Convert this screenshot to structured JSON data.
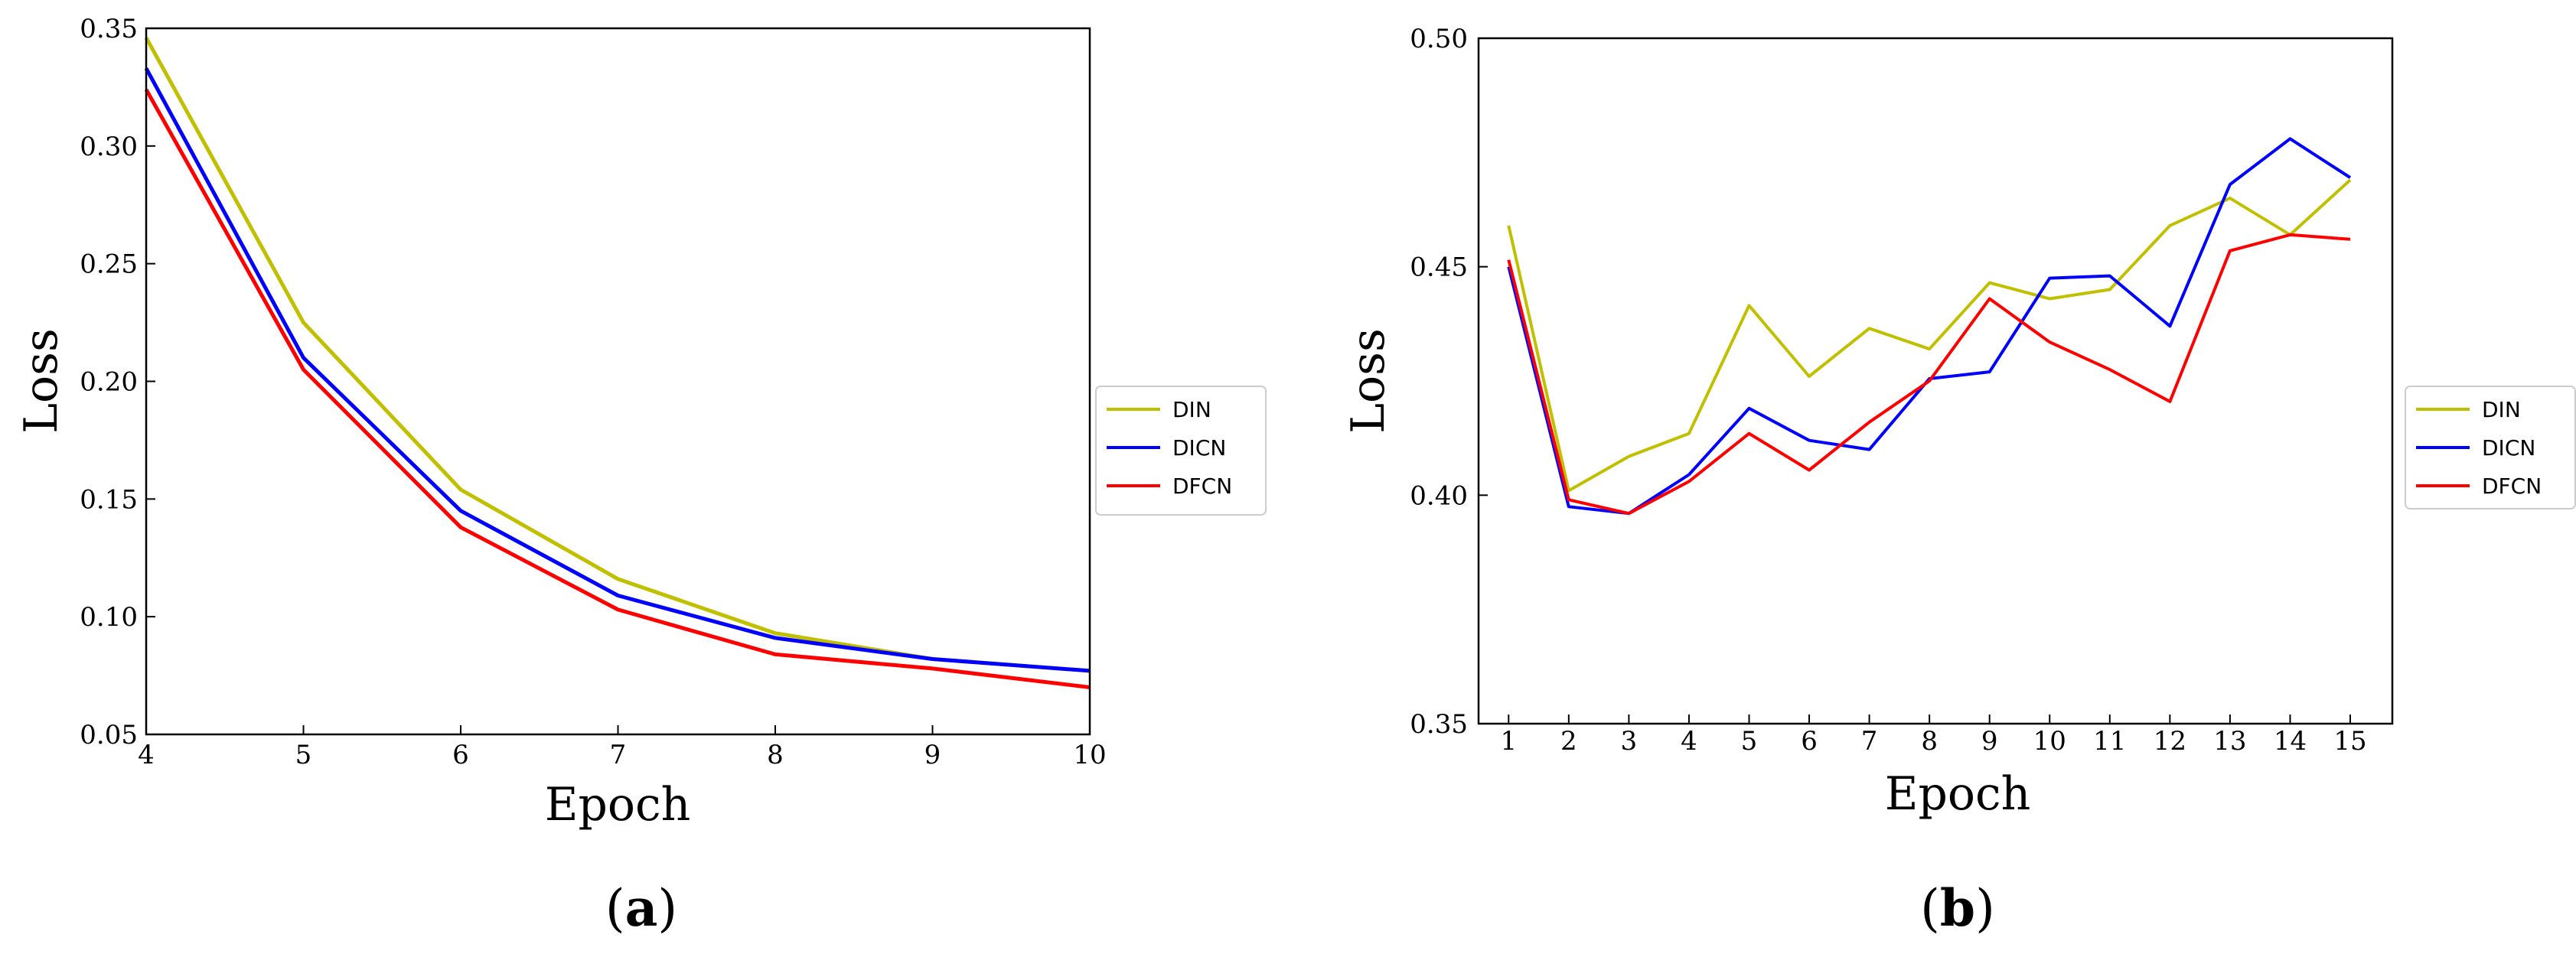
{
  "chart_data": [
    {
      "type": "line",
      "panel": "a",
      "xlabel": "Epoch",
      "ylabel": "Loss",
      "xlim": [
        4,
        10
      ],
      "ylim": [
        0.05,
        0.35
      ],
      "xticks": [
        "4",
        "5",
        "6",
        "7",
        "8",
        "9",
        "10"
      ],
      "yticks": [
        "0.05",
        "0.10",
        "0.15",
        "0.20",
        "0.25",
        "0.30",
        "0.35"
      ],
      "x": [
        4,
        5,
        6,
        7,
        8,
        9,
        10
      ],
      "series": [
        {
          "name": "DIN",
          "color": "#c0c000",
          "values": [
            0.346,
            0.225,
            0.154,
            0.116,
            0.093,
            0.082,
            0.077
          ]
        },
        {
          "name": "DICN",
          "color": "#0000ff",
          "values": [
            0.333,
            0.21,
            0.145,
            0.109,
            0.091,
            0.082,
            0.077
          ]
        },
        {
          "name": "DFCN",
          "color": "#ff0000",
          "values": [
            0.324,
            0.205,
            0.138,
            0.103,
            0.084,
            0.078,
            0.07
          ]
        }
      ],
      "legend_position": "right",
      "caption_open": "(",
      "caption": "a",
      "caption_close": ")"
    },
    {
      "type": "line",
      "panel": "b",
      "xlabel": "Epoch",
      "ylabel": "Loss",
      "xlim": [
        0.5,
        15.7
      ],
      "ylim": [
        0.35,
        0.5
      ],
      "xticks": [
        "1",
        "2",
        "3",
        "4",
        "5",
        "6",
        "7",
        "8",
        "9",
        "10",
        "11",
        "12",
        "13",
        "14",
        "15"
      ],
      "yticks": [
        "0.35",
        "0.40",
        "0.45",
        "0.50"
      ],
      "x": [
        1,
        2,
        3,
        4,
        5,
        6,
        7,
        8,
        9,
        10,
        11,
        12,
        13,
        14,
        15
      ],
      "series": [
        {
          "name": "DIN",
          "color": "#c0c000",
          "values": [
            0.459,
            0.401,
            0.4085,
            0.4135,
            0.4415,
            0.426,
            0.4365,
            0.432,
            0.4465,
            0.443,
            0.445,
            0.459,
            0.465,
            0.457,
            0.469
          ]
        },
        {
          "name": "DICN",
          "color": "#0000ff",
          "values": [
            0.45,
            0.3975,
            0.396,
            0.4045,
            0.419,
            0.412,
            0.41,
            0.4255,
            0.427,
            0.4475,
            0.448,
            0.437,
            0.468,
            0.478,
            0.4695
          ]
        },
        {
          "name": "DFCN",
          "color": "#ff0000",
          "values": [
            0.4515,
            0.399,
            0.396,
            0.403,
            0.4135,
            0.4055,
            0.416,
            0.425,
            0.443,
            0.4335,
            0.4275,
            0.4205,
            0.4535,
            0.457,
            0.456
          ]
        }
      ],
      "legend_position": "right",
      "caption_open": "(",
      "caption": "b",
      "caption_close": ")"
    }
  ]
}
